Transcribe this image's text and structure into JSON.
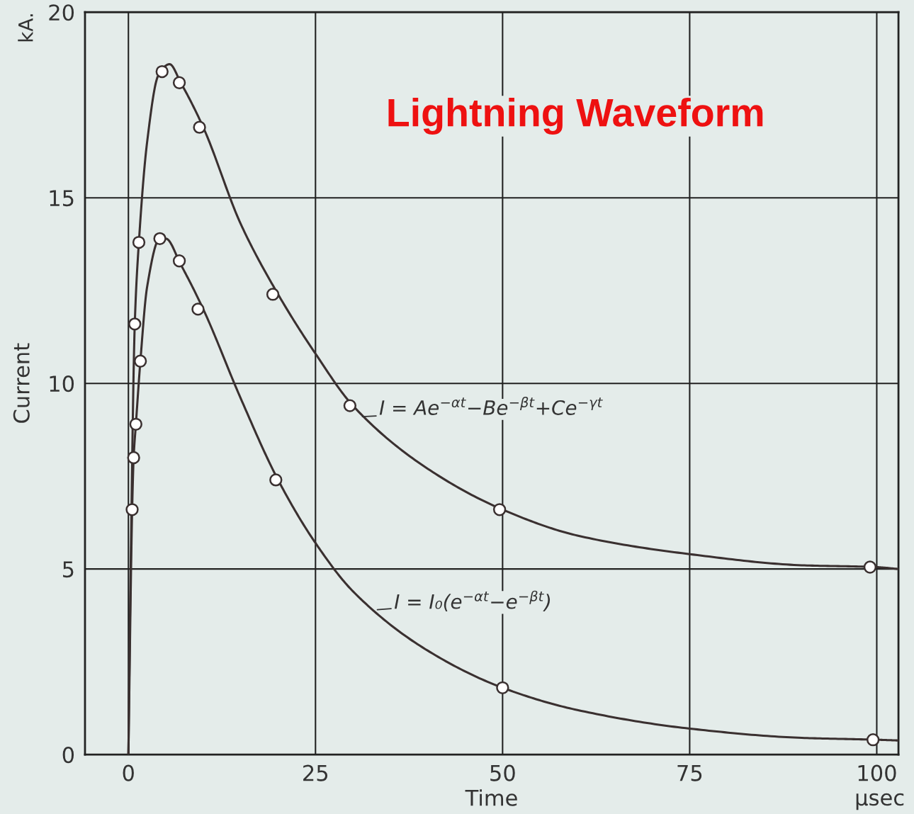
{
  "chart_data": {
    "type": "line",
    "title": "Lightning Waveform",
    "xlabel": "Time",
    "ylabel": "Current",
    "xlim": [
      -5.8,
      102.9
    ],
    "ylim": [
      0,
      20
    ],
    "xticks": [
      0,
      25,
      50,
      75,
      100
    ],
    "yticks": [
      0,
      5,
      10,
      15,
      20
    ],
    "grid": true,
    "legend": false,
    "series": [
      {
        "color": "#3a3030",
        "marker": "none",
        "x": [
          0,
          0.3,
          0.85,
          1.4,
          2.5,
          4,
          5.5,
          7,
          10,
          15,
          20,
          25,
          30,
          40,
          50,
          60,
          75,
          90,
          100,
          102.9
        ],
        "values": [
          0,
          5,
          11.6,
          13.8,
          16.5,
          18.3,
          18.6,
          18.1,
          16.9,
          14.3,
          12.4,
          10.8,
          9.4,
          7.7,
          6.6,
          5.9,
          5.4,
          5.1,
          5.05,
          5.0
        ]
      },
      {
        "color": "#3a3030",
        "marker": "none",
        "x": [
          0,
          0.5,
          0.7,
          1.0,
          1.6,
          2.5,
          4.2,
          5,
          7,
          10,
          15,
          20,
          25,
          30,
          40,
          50,
          60,
          75,
          90,
          100,
          102.9
        ],
        "values": [
          0,
          6.6,
          8.0,
          8.9,
          10.6,
          12.6,
          13.9,
          13.9,
          13.2,
          12.0,
          9.6,
          7.4,
          5.7,
          4.4,
          2.8,
          1.8,
          1.2,
          0.7,
          0.45,
          0.4,
          0.38
        ]
      },
      {
        "type": "scatter",
        "color": "#3a3030",
        "marker": "circle",
        "x": [
          0.85,
          1.4,
          4.5,
          6.8,
          9.5,
          19.3,
          29.6,
          49.6,
          99.1
        ],
        "values": [
          11.6,
          13.8,
          18.4,
          18.1,
          16.9,
          12.4,
          9.4,
          6.6,
          5.05
        ]
      },
      {
        "type": "scatter",
        "color": "#3a3030",
        "marker": "circle",
        "x": [
          0.5,
          0.7,
          1.0,
          1.6,
          4.2,
          6.8,
          9.3,
          19.7,
          50,
          99.5
        ],
        "values": [
          6.6,
          8.0,
          8.9,
          10.6,
          13.9,
          13.3,
          12.0,
          7.4,
          1.8,
          0.4
        ]
      }
    ],
    "annotations": [
      "kA.",
      "µsec",
      {
        "text": "I = Ae$^{−αt}$−Be$^{−βt}$+Ce$^{−γt}$",
        "x": 31,
        "y": 9.1
      },
      {
        "text": "I = I₀(e$^{−αt}$−e$^{−βt}$)",
        "x": 33,
        "y": 3.9
      }
    ]
  }
}
